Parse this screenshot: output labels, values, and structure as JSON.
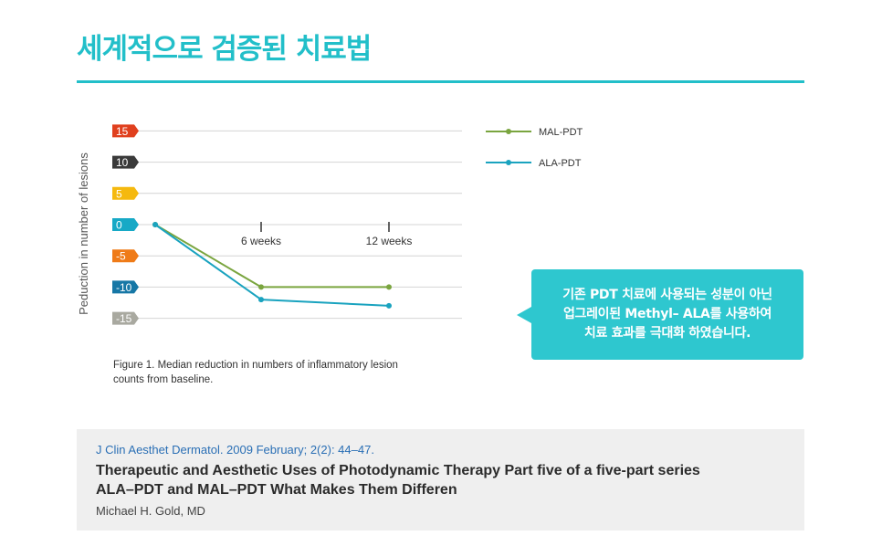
{
  "header": {
    "title": "세계적으로 검증된 치료법"
  },
  "chart_data": {
    "type": "line",
    "ylabel": "Peduction in number of lesions",
    "y_ticks": [
      {
        "value": 15,
        "label": "15",
        "color": "#e0401e"
      },
      {
        "value": 10,
        "label": "10",
        "color": "#3a3a3a"
      },
      {
        "value": 5,
        "label": "5",
        "color": "#f5b90f"
      },
      {
        "value": 0,
        "label": "0",
        "color": "#17a9c6"
      },
      {
        "value": -5,
        "label": "-5",
        "color": "#ef7b18"
      },
      {
        "value": -10,
        "label": "-10",
        "color": "#1677a6"
      },
      {
        "value": -15,
        "label": "-15",
        "color": "#a9a9a0"
      }
    ],
    "ylim": [
      -15,
      15
    ],
    "x_ticks": [
      "6 weeks",
      "12 weeks"
    ],
    "grid": true,
    "legend_position": "top-right",
    "series": [
      {
        "name": "MAL-PDT",
        "color": "#7aa53f",
        "values": [
          0,
          -10,
          -10
        ]
      },
      {
        "name": "ALA-PDT",
        "color": "#1aa3bf",
        "values": [
          0,
          -12,
          -13
        ]
      }
    ]
  },
  "figure": {
    "caption_label": "Figure 1.",
    "caption_text": "Median reduction in numbers of inflammatory lesion counts from baseline."
  },
  "callout": {
    "text": "기존 PDT 치료에 사용되는 성분이 아닌\n업그레이된 Methyl– ALA를 사용하여\n치료 효과를 극대화 하였습니다."
  },
  "reference": {
    "journal": "J Clin Aesthet Dermatol. 2009 February; 2(2): 44–47.",
    "title_line1": "Therapeutic and Aesthetic Uses of Photodynamic Therapy Part five of a five-part series",
    "title_line2": "ALA–PDT and MAL–PDT What Makes Them Differen",
    "author": "Michael H. Gold, MD"
  }
}
